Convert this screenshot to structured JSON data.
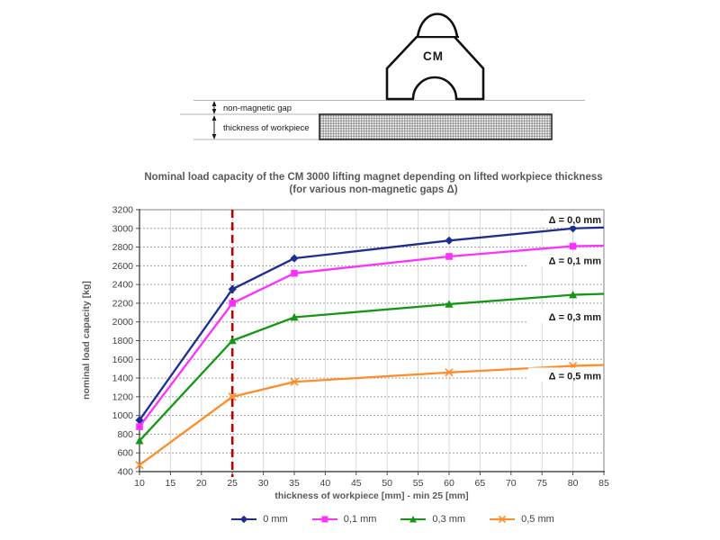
{
  "diagram": {
    "magnet_label": "CM",
    "gap_label": "non-magnetic gap",
    "thickness_label": "thickness of workpiece"
  },
  "chart": {
    "title_line1": "Nominal load capacity of the CM 3000 lifting magnet depending on lifted workpiece thickness",
    "title_line2": "(for various non-magnetic gaps Δ)",
    "xlabel": "thickness of workpiece [mm] - min 25 [mm]",
    "ylabel": "nominal load capacity [kg]"
  },
  "chart_data": {
    "type": "line",
    "title": "Nominal load capacity of the CM 3000 lifting magnet depending on lifted workpiece thickness (for various non-magnetic gaps Δ)",
    "xlabel": "thickness of workpiece [mm] - min 25 [mm]",
    "ylabel": "nominal load capacity [kg]",
    "xlim": [
      10,
      85
    ],
    "ylim": [
      400,
      3200
    ],
    "x_ticks": [
      10,
      15,
      20,
      25,
      30,
      35,
      40,
      45,
      50,
      55,
      60,
      65,
      70,
      75,
      80,
      85
    ],
    "y_ticks": [
      400,
      600,
      800,
      1000,
      1200,
      1400,
      1600,
      1800,
      2000,
      2200,
      2400,
      2600,
      2800,
      3000,
      3200
    ],
    "grid": true,
    "legend_position": "bottom",
    "x": [
      10,
      25,
      35,
      60,
      80,
      85
    ],
    "marker_points": [
      10,
      25,
      35,
      60,
      80
    ],
    "series": [
      {
        "name": "0 mm",
        "annotation": "Δ = 0,0 mm",
        "color": "#1F2D91",
        "marker": "diamond",
        "values": [
          950,
          2350,
          2680,
          2870,
          3000,
          3010
        ]
      },
      {
        "name": "0,1 mm",
        "annotation": "Δ = 0,1 mm",
        "color": "#FF30FF",
        "marker": "square",
        "values": [
          880,
          2200,
          2520,
          2700,
          2810,
          2815
        ]
      },
      {
        "name": "0,3 mm",
        "annotation": "Δ = 0,3 mm",
        "color": "#169616",
        "marker": "triangle",
        "values": [
          730,
          1800,
          2050,
          2190,
          2290,
          2300
        ]
      },
      {
        "name": "0,5 mm",
        "annotation": "Δ = 0,5 mm",
        "color": "#FF8C26",
        "marker": "x",
        "values": [
          470,
          1200,
          1360,
          1460,
          1530,
          1540
        ]
      }
    ],
    "reference_line": {
      "x": 25,
      "color": "#C00000",
      "style": "dashed"
    },
    "annotations": [
      {
        "label": "Δ = 0,0 mm",
        "y": 3095
      },
      {
        "label": "Δ = 0,1 mm",
        "y": 2655
      },
      {
        "label": "Δ = 0,3 mm",
        "y": 2055
      },
      {
        "label": "Δ = 0,5 mm",
        "y": 1425
      }
    ]
  }
}
